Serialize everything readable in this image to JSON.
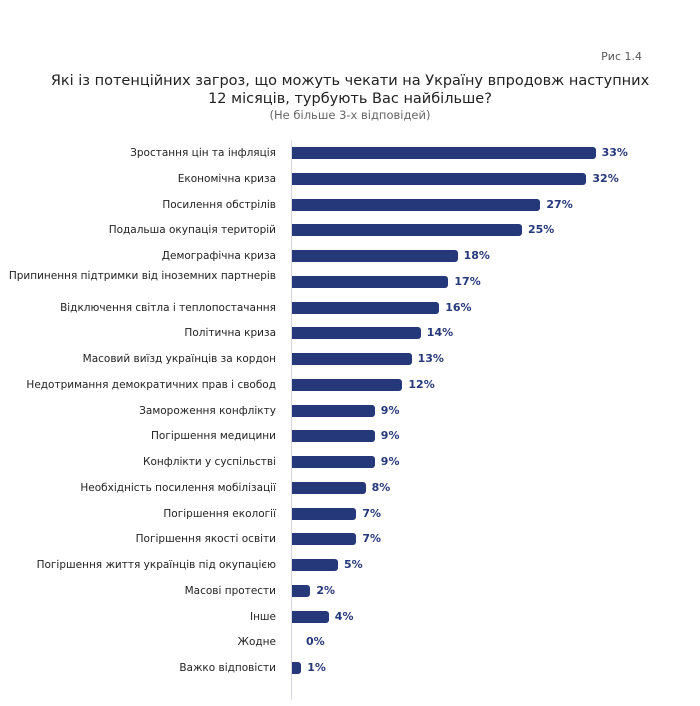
{
  "figure_label": "Рис 1.4",
  "chart_data": {
    "type": "bar",
    "orientation": "horizontal",
    "title": "Які із потенційних загроз, що можуть чекати на Україну впродовж наступних 12 місяців, турбують Вас найбільше?",
    "subtitle": "(Не більше 3-х відповідей)",
    "unit": "%",
    "color": "#25387a",
    "categories": [
      "Зростання цін та інфляція",
      "Економічна криза",
      "Посилення обстрілів",
      "Подальша окупація територій",
      "Демографічна криза",
      "Припинення підтримки від іноземних партнерів",
      "Відключення світла і теплопостачання",
      "Політична криза",
      "Масовий виїзд українців за кордон",
      "Недотримання демократичних прав і свобод",
      "Замороження конфлікту",
      "Погіршення медицини",
      "Конфлікти у суспільстві",
      "Необхідність посилення мобілізації",
      "Погіршення екології",
      "Погіршення якості освіти",
      "Погіршення життя українців під окупацією",
      "Масові протести",
      "Інше",
      "Жодне",
      "Важко відповісти"
    ],
    "values": [
      33,
      32,
      27,
      25,
      18,
      17,
      16,
      14,
      13,
      12,
      9,
      9,
      9,
      8,
      7,
      7,
      5,
      2,
      4,
      0,
      1
    ],
    "value_labels": [
      "33%",
      "32%",
      "27%",
      "25%",
      "18%",
      "17%",
      "16%",
      "14%",
      "13%",
      "12%",
      "9%",
      "9%",
      "9%",
      "8%",
      "7%",
      "7%",
      "5%",
      "2%",
      "4%",
      "0%",
      "1%"
    ],
    "xlim": [
      0,
      35
    ]
  }
}
